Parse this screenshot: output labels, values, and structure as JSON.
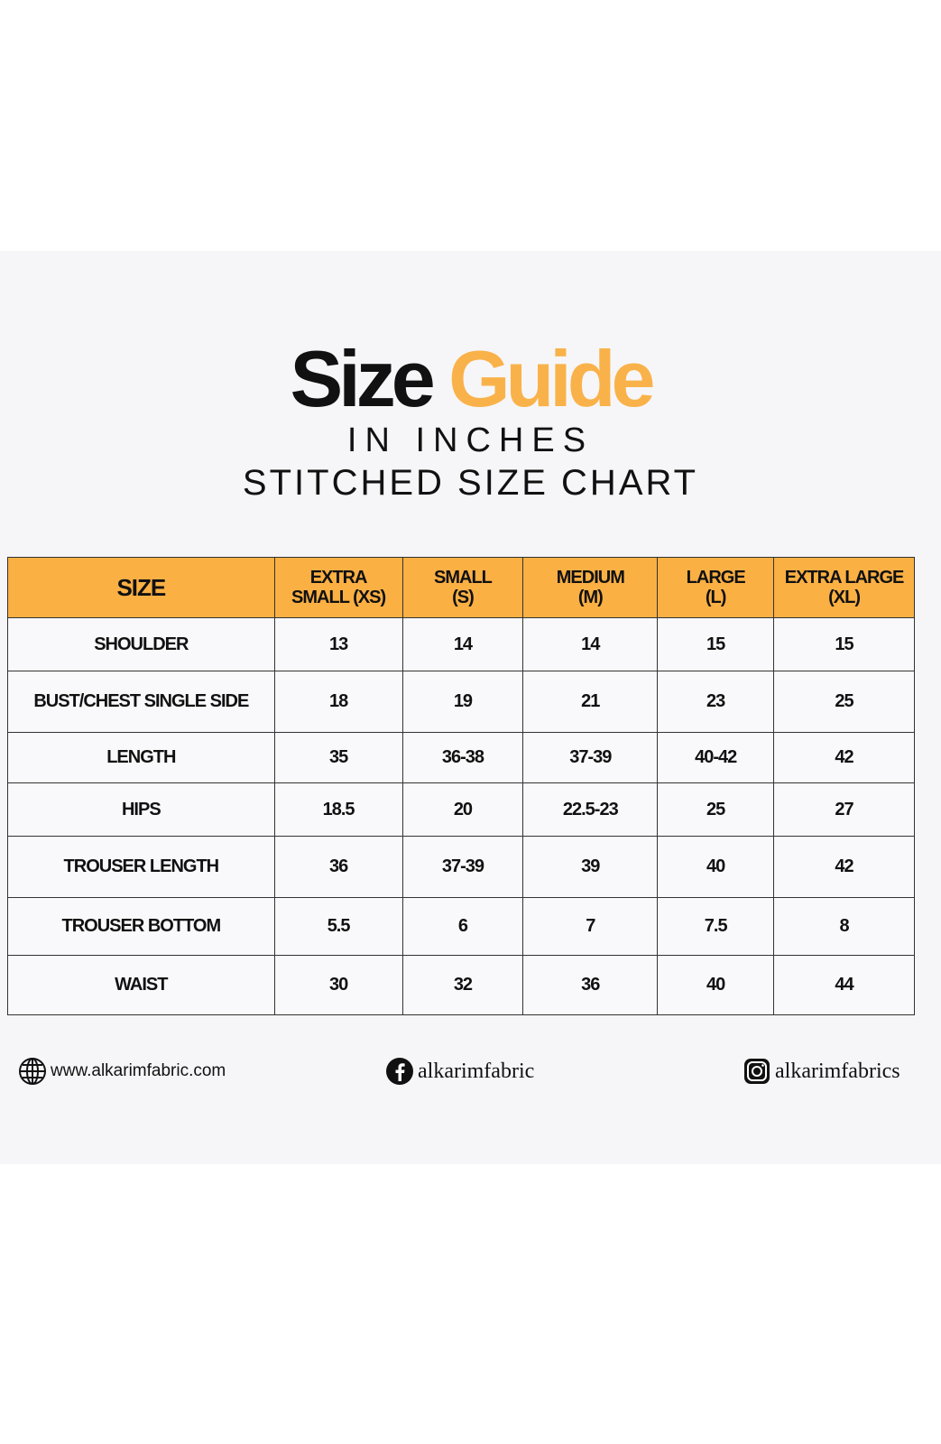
{
  "heading": {
    "word1": "Size",
    "word2": "Guide",
    "unit": "IN INCHES",
    "subtitle": "STITCHED SIZE CHART",
    "accent_color": "#f9b24a"
  },
  "table": {
    "header_color": "#fbb044",
    "columns": [
      {
        "line1": "SIZE",
        "line2": ""
      },
      {
        "line1": "EXTRA",
        "line2": "SMALL (XS)"
      },
      {
        "line1": "SMALL",
        "line2": "(S)"
      },
      {
        "line1": "MEDIUM",
        "line2": "(M)"
      },
      {
        "line1": "LARGE",
        "line2": "(L)"
      },
      {
        "line1": "EXTRA LARGE",
        "line2": "(XL)"
      }
    ],
    "rows": [
      [
        "SHOULDER",
        "13",
        "14",
        "14",
        "15",
        "15"
      ],
      [
        "BUST/CHEST SINGLE SIDE",
        "18",
        "19",
        "21",
        "23",
        "25"
      ],
      [
        "LENGTH",
        "35",
        "36-38",
        "37-39",
        "40-42",
        "42"
      ],
      [
        "HIPS",
        "18.5",
        "20",
        "22.5-23",
        "25",
        "27"
      ],
      [
        "TROUSER LENGTH",
        "36",
        "37-39",
        "39",
        "40",
        "42"
      ],
      [
        "TROUSER BOTTOM",
        "5.5",
        "6",
        "7",
        "7.5",
        "8"
      ],
      [
        "WAIST",
        "30",
        "32",
        "36",
        "40",
        "44"
      ]
    ]
  },
  "footer": {
    "website": {
      "icon": "globe-icon",
      "text": "www.alkarimfabric.com"
    },
    "facebook": {
      "icon": "facebook-icon",
      "text": "alkarimfabric"
    },
    "instagram": {
      "icon": "instagram-icon",
      "text": "alkarimfabrics"
    }
  }
}
